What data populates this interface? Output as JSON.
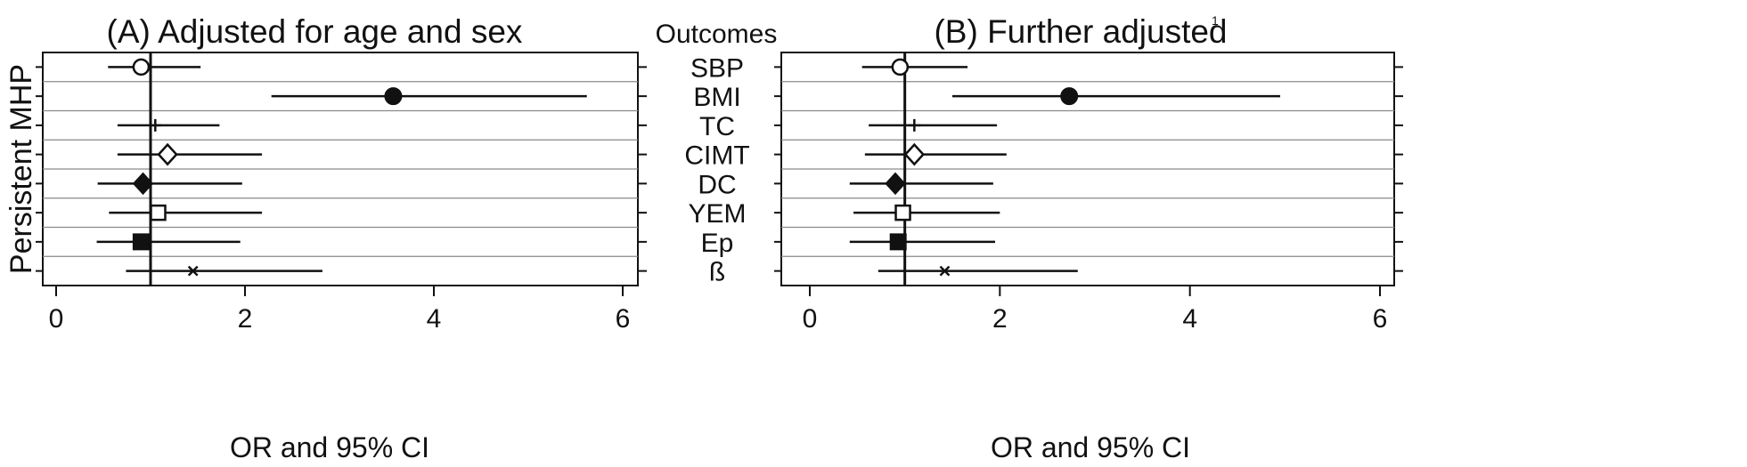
{
  "outcomes_header": "Outcomes",
  "y_group_label": "Persistent MHP",
  "chart_data": [
    {
      "type": "forest",
      "title": "(A) Adjusted for age and sex",
      "title_superscript": "",
      "xlabel": "OR and 95% CI",
      "ylabel": "Persistent MHP",
      "xlim": [
        -0.2,
        6.2
      ],
      "xticks": [
        0,
        2,
        4,
        6
      ],
      "reference_line": 1,
      "grid": "horizontal",
      "rows": [
        {
          "outcome": "SBP",
          "or": 0.9,
          "lower": 0.55,
          "upper": 1.53,
          "marker": "open-circle"
        },
        {
          "outcome": "BMI",
          "or": 3.57,
          "lower": 2.28,
          "upper": 5.62,
          "marker": "filled-circle"
        },
        {
          "outcome": "TC",
          "or": 1.05,
          "lower": 0.65,
          "upper": 1.73,
          "marker": "plus"
        },
        {
          "outcome": "CIMT",
          "or": 1.18,
          "lower": 0.65,
          "upper": 2.18,
          "marker": "open-diamond"
        },
        {
          "outcome": "DC",
          "or": 0.92,
          "lower": 0.44,
          "upper": 1.97,
          "marker": "filled-diamond"
        },
        {
          "outcome": "YEM",
          "or": 1.08,
          "lower": 0.56,
          "upper": 2.18,
          "marker": "open-square"
        },
        {
          "outcome": "Ep",
          "or": 0.9,
          "lower": 0.43,
          "upper": 1.95,
          "marker": "filled-square"
        },
        {
          "outcome": "ß",
          "or": 1.45,
          "lower": 0.74,
          "upper": 2.82,
          "marker": "cross"
        }
      ]
    },
    {
      "type": "forest",
      "title": "(B) Further adjusted",
      "title_superscript": "1",
      "xlabel": "OR and 95% CI",
      "ylabel": "",
      "xlim": [
        -0.2,
        6.2
      ],
      "xticks": [
        0,
        2,
        4,
        6
      ],
      "reference_line": 1,
      "grid": "horizontal",
      "rows": [
        {
          "outcome": "SBP",
          "or": 0.95,
          "lower": 0.55,
          "upper": 1.66,
          "marker": "open-circle"
        },
        {
          "outcome": "BMI",
          "or": 2.73,
          "lower": 1.5,
          "upper": 4.95,
          "marker": "filled-circle"
        },
        {
          "outcome": "TC",
          "or": 1.1,
          "lower": 0.62,
          "upper": 1.97,
          "marker": "plus"
        },
        {
          "outcome": "CIMT",
          "or": 1.1,
          "lower": 0.58,
          "upper": 2.07,
          "marker": "open-diamond"
        },
        {
          "outcome": "DC",
          "or": 0.9,
          "lower": 0.42,
          "upper": 1.93,
          "marker": "filled-diamond"
        },
        {
          "outcome": "YEM",
          "or": 0.98,
          "lower": 0.46,
          "upper": 2.0,
          "marker": "open-square"
        },
        {
          "outcome": "Ep",
          "or": 0.93,
          "lower": 0.42,
          "upper": 1.95,
          "marker": "filled-square"
        },
        {
          "outcome": "ß",
          "or": 1.42,
          "lower": 0.72,
          "upper": 2.82,
          "marker": "cross"
        }
      ]
    }
  ]
}
